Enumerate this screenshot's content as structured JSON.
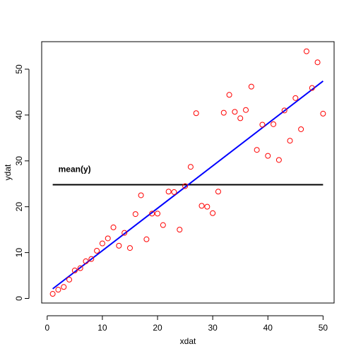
{
  "chart_data": {
    "type": "scatter",
    "xlabel": "xdat",
    "ylabel": "ydat",
    "xlim": [
      -1.0,
      52.0
    ],
    "ylim": [
      -1.0,
      56.0
    ],
    "xticks": [
      0,
      10,
      20,
      30,
      40,
      50
    ],
    "yticks": [
      0,
      10,
      20,
      30,
      40,
      50
    ],
    "grid": false,
    "points": {
      "color": "#ff0000",
      "x": [
        1,
        2,
        3,
        4,
        5,
        6,
        7,
        8,
        9,
        10,
        11,
        12,
        13,
        14,
        15,
        16,
        17,
        18,
        19,
        20,
        21,
        22,
        23,
        24,
        25,
        26,
        27,
        28,
        29,
        30,
        31,
        32,
        33,
        34,
        35,
        36,
        37,
        38,
        39,
        40,
        41,
        42,
        43,
        44,
        45,
        46,
        47,
        48,
        49,
        50
      ],
      "y": [
        1.0,
        1.9,
        2.5,
        4.1,
        6.1,
        6.6,
        8.1,
        8.6,
        10.4,
        12.0,
        13.1,
        15.5,
        11.5,
        14.3,
        11.0,
        18.4,
        22.5,
        12.9,
        18.5,
        18.5,
        16.0,
        23.3,
        23.2,
        15.0,
        24.5,
        28.7,
        40.4,
        20.2,
        20.0,
        18.6,
        23.3,
        40.5,
        44.4,
        40.7,
        39.3,
        41.1,
        46.2,
        32.4,
        37.9,
        31.1,
        38.0,
        30.2,
        41.0,
        34.4,
        43.7,
        36.9,
        53.9,
        45.9,
        51.5,
        40.3
      ]
    },
    "regression_line": {
      "color": "#0000ff",
      "x": [
        1,
        50
      ],
      "y": [
        2.1,
        47.4
      ]
    },
    "mean_line": {
      "color": "#000000",
      "x": [
        1,
        50
      ],
      "y": 24.8,
      "label": "mean(y)"
    }
  }
}
